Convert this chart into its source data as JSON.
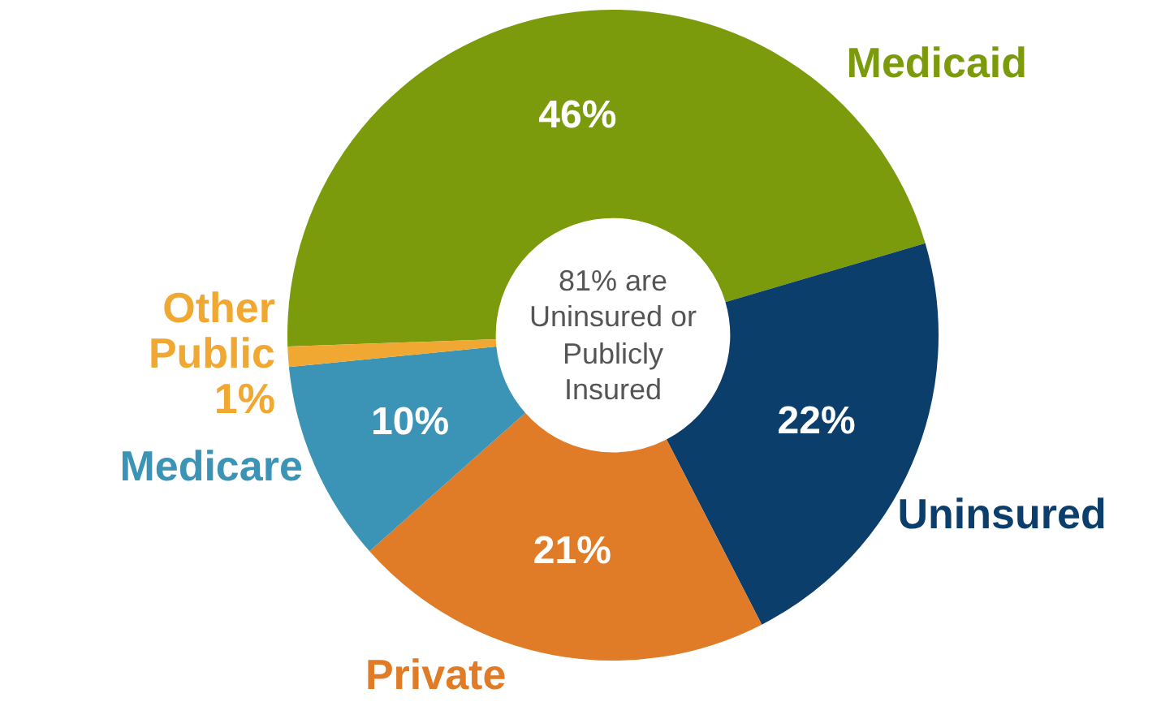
{
  "chart_data": {
    "type": "donut",
    "categories": [
      "Medicaid",
      "Uninsured",
      "Private",
      "Medicare",
      "Other Public"
    ],
    "values": [
      46,
      22,
      21,
      10,
      1
    ],
    "colors": [
      "#7b9b0c",
      "#0c3e6c",
      "#e07b27",
      "#3b93b6",
      "#f0a832"
    ],
    "value_labels": [
      "46%",
      "22%",
      "21%",
      "10%",
      "1%"
    ],
    "annotations": [
      "81% are Uninsured or Publicly Insured"
    ],
    "legend": false
  }
}
